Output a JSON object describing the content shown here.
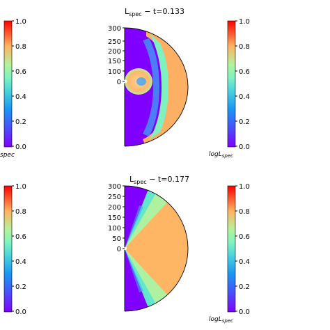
{
  "chart_data": [
    {
      "type": "heatmap",
      "panel": "top",
      "title_main": "L",
      "title_sub": "spec",
      "title_time": " − t=0.133",
      "y_ticks": [
        "300",
        "250",
        "200",
        "150",
        "100",
        "50",
        "0"
      ],
      "ylim": [
        0,
        300
      ],
      "colorbar_ticks": [
        "1.0",
        "0.8",
        "0.6",
        "0.4",
        "0.2",
        "0.0"
      ],
      "clim": [
        0.0,
        1.0
      ],
      "colormap": "rainbow",
      "left_colorbar_label_suffix": "spec",
      "right_colorbar_label": "logL",
      "right_colorbar_label_sub": "spec",
      "grid": false
    },
    {
      "type": "heatmap",
      "panel": "bottom",
      "title_main": "L",
      "title_sub": "spec",
      "title_time": " − t=0.177",
      "y_ticks": [
        "300",
        "250",
        "200",
        "150",
        "100",
        "50",
        "0"
      ],
      "ylim": [
        0,
        300
      ],
      "colorbar_ticks": [
        "1.0",
        "0.8",
        "0.6",
        "0.4",
        "0.2",
        "0.0"
      ],
      "clim": [
        0.0,
        1.0
      ],
      "colormap": "rainbow",
      "right_colorbar_label": "logL",
      "right_colorbar_label_sub": "spec",
      "grid": false
    }
  ]
}
